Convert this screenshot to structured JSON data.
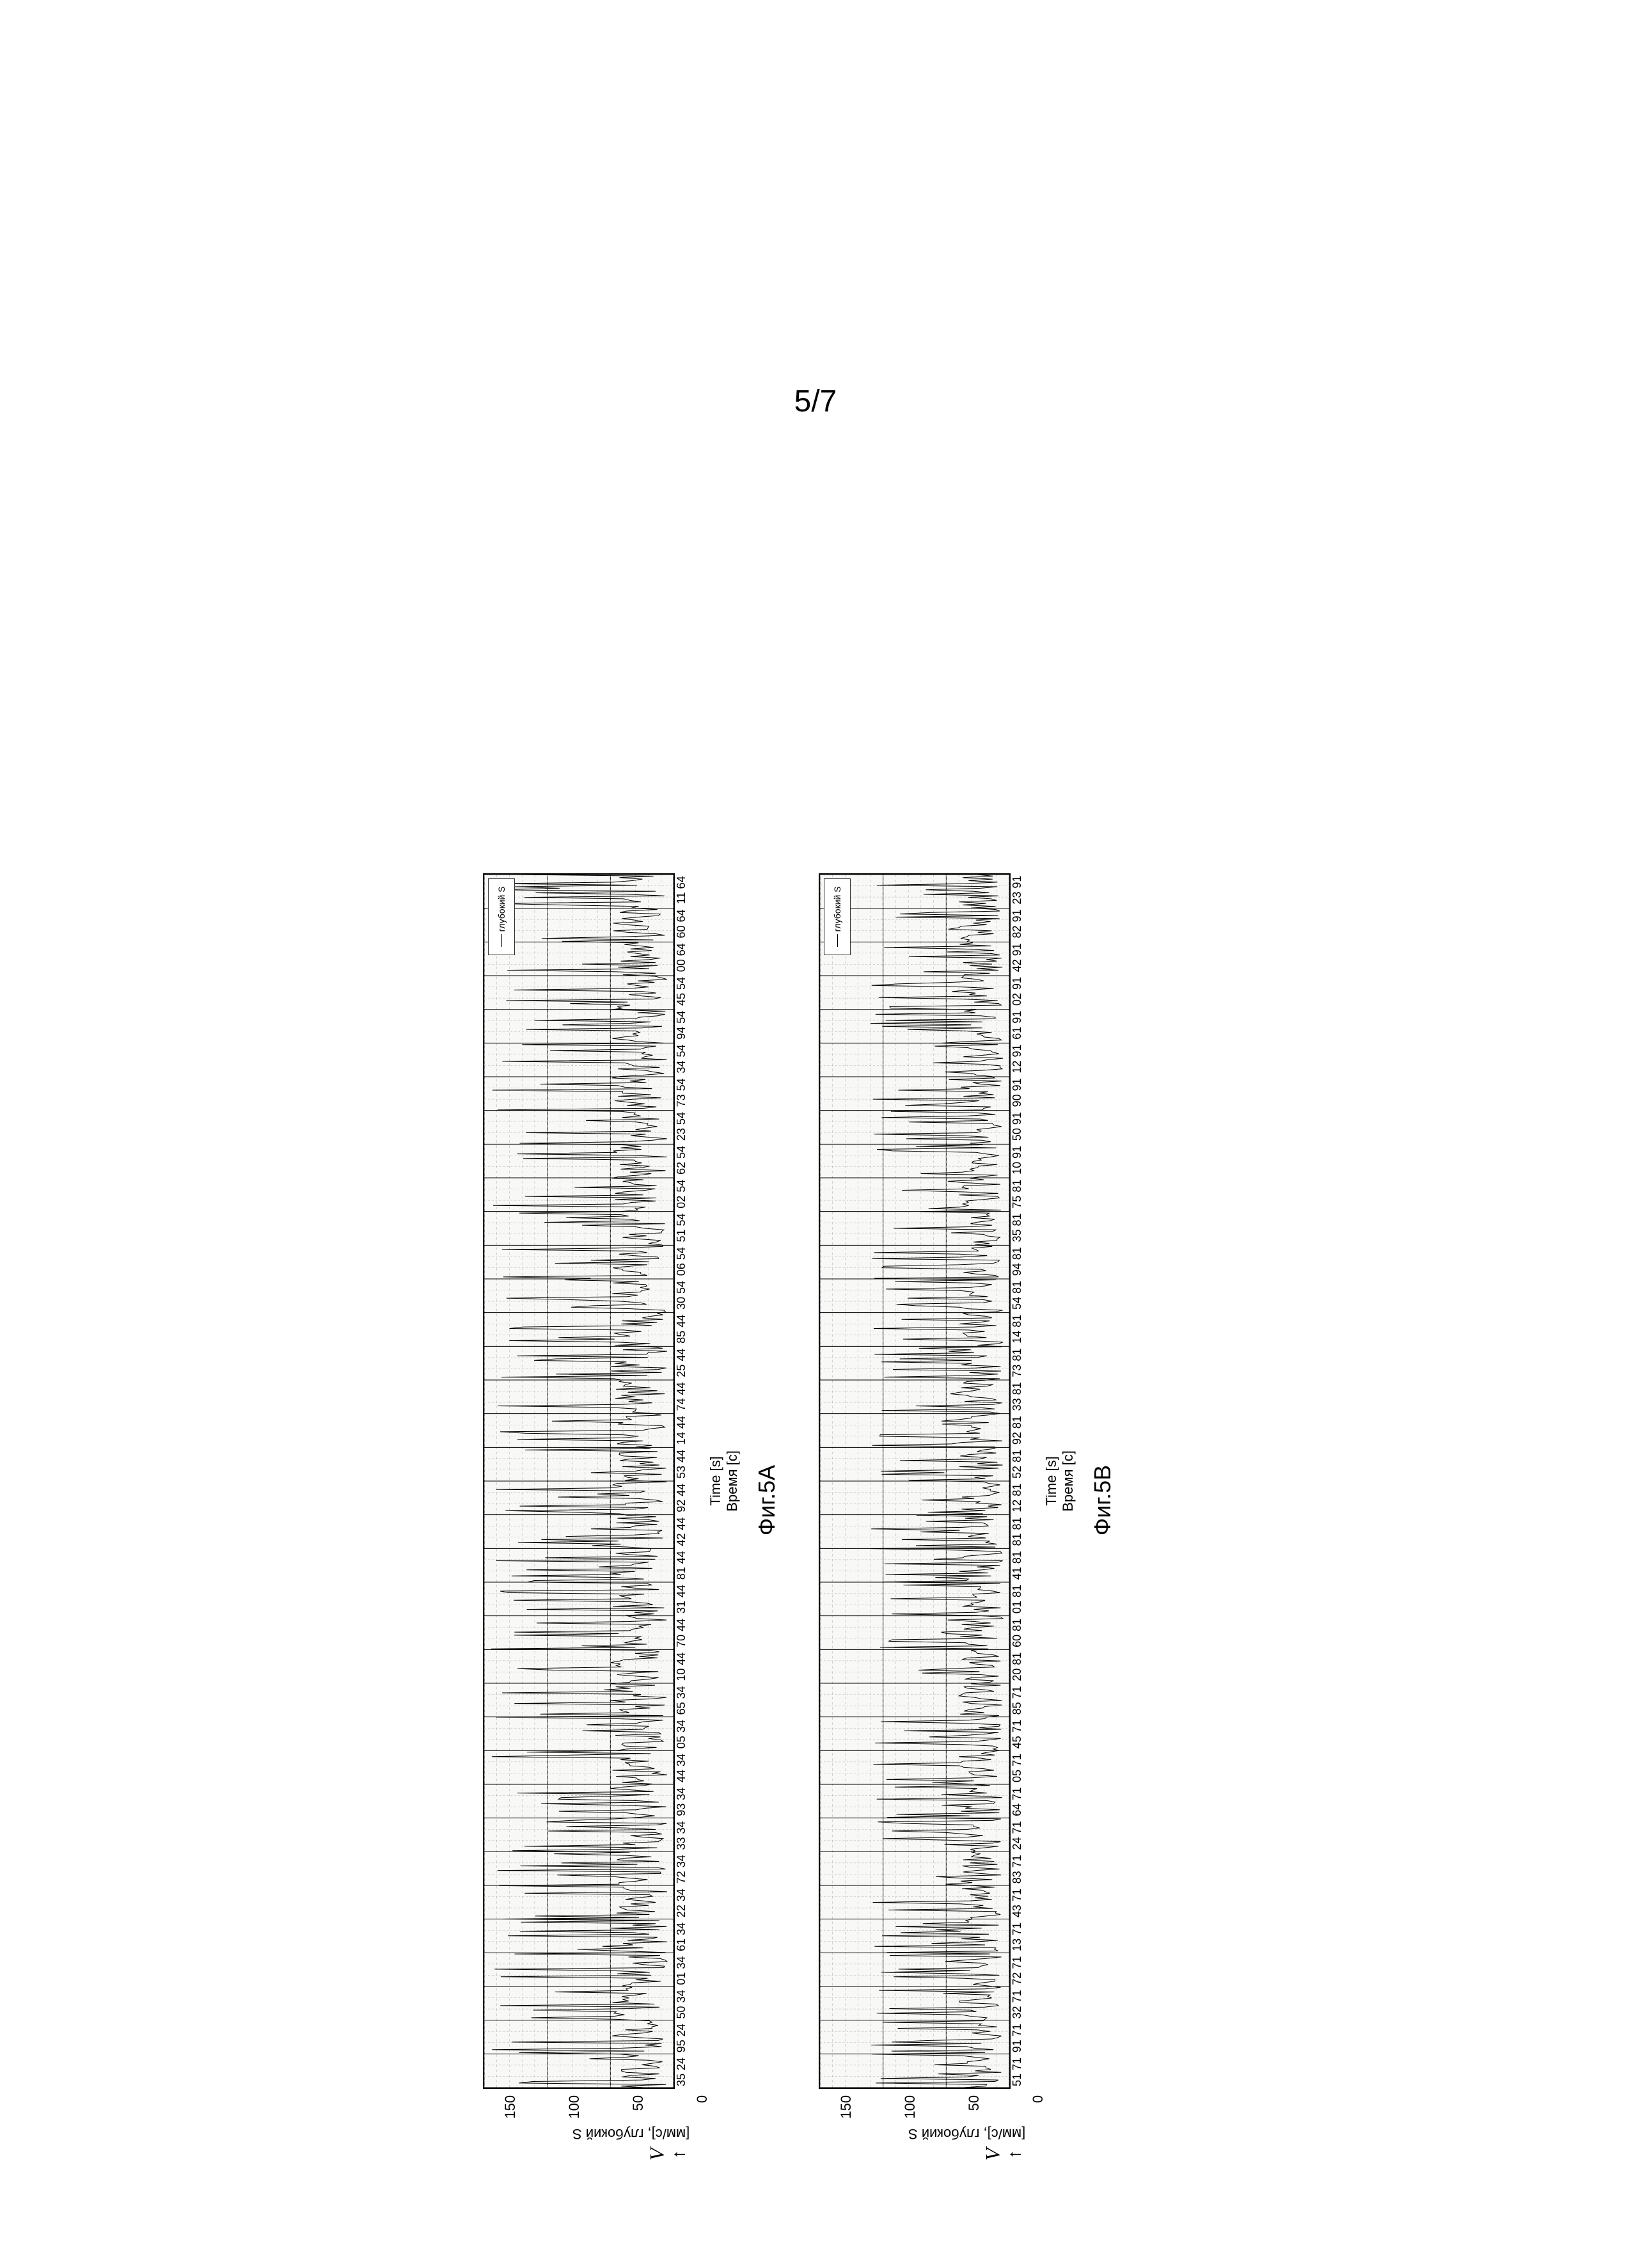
{
  "page_number": "5/7",
  "chartA": {
    "figure_label": "Фиг.5A",
    "type": "line-timeseries",
    "y_axis": {
      "label": "[мм/с], глубокий S",
      "arrow_label": "V",
      "ticks": [
        0,
        50,
        100,
        150
      ],
      "ylim": [
        0,
        150
      ]
    },
    "x_axis": {
      "label": "Время [с]",
      "overlay_label": "Time [s]",
      "ticks": [
        "35 24",
        "95 24",
        "50 34",
        "01 34",
        "61 34",
        "22 34",
        "72 34",
        "33 34",
        "93 34",
        "44 34",
        "05 34",
        "65 34",
        "10 44",
        "70 44",
        "31 44",
        "81 44",
        "42 44",
        "92 44",
        "53 44",
        "14 44",
        "74 44",
        "25 44",
        "85 44",
        "30 54",
        "06 54",
        "51 54",
        "02 54",
        "62 54",
        "23 54",
        "73 54",
        "34 54",
        "94 54",
        "45 54",
        "00 64",
        "60 64",
        "11 64"
      ]
    },
    "legend_text": "глубокий S",
    "grid": {
      "major_color": "#000000",
      "minor_color": "#aaaaaa",
      "h_major": 3,
      "h_minor_per": 5
    },
    "colors": {
      "background": "#f8f8f6",
      "line": "#000000",
      "border": "#000000"
    },
    "line_width": 1,
    "series_profile": {
      "base_range": [
        5,
        50
      ],
      "spike_range": [
        55,
        145
      ],
      "seed": 5
    }
  },
  "chartB": {
    "figure_label": "Фиг.5B",
    "type": "line-timeseries",
    "y_axis": {
      "label": "[мм/с], глубокий S",
      "arrow_label": "V",
      "ticks": [
        0,
        50,
        100,
        150
      ],
      "ylim": [
        0,
        150
      ]
    },
    "x_axis": {
      "label": "Время [с]",
      "overlay_label": "Time [s]",
      "ticks": [
        "51 71",
        "91 71",
        "32 71",
        "72 71",
        "13 71",
        "43 71",
        "83 71",
        "24 71",
        "64 71",
        "05 71",
        "45 71",
        "85 71",
        "20 81",
        "60 81",
        "01 81",
        "41 81",
        "81 81",
        "12 81",
        "52 81",
        "92 81",
        "33 81",
        "73 81",
        "14 81",
        "54 81",
        "94 81",
        "35 81",
        "75 81",
        "10 91",
        "50 91",
        "90 91",
        "12 91",
        "61 91",
        "02 91",
        "42 91",
        "82 91",
        "23 91"
      ]
    },
    "legend_text": "глубокий S",
    "grid": {
      "major_color": "#000000",
      "minor_color": "#aaaaaa",
      "h_major": 3,
      "h_minor_per": 5
    },
    "colors": {
      "background": "#f8f8f6",
      "line": "#000000",
      "border": "#000000"
    },
    "line_width": 1,
    "series_profile": {
      "base_range": [
        5,
        40
      ],
      "spike_range": [
        45,
        110
      ],
      "seed": 17
    }
  }
}
